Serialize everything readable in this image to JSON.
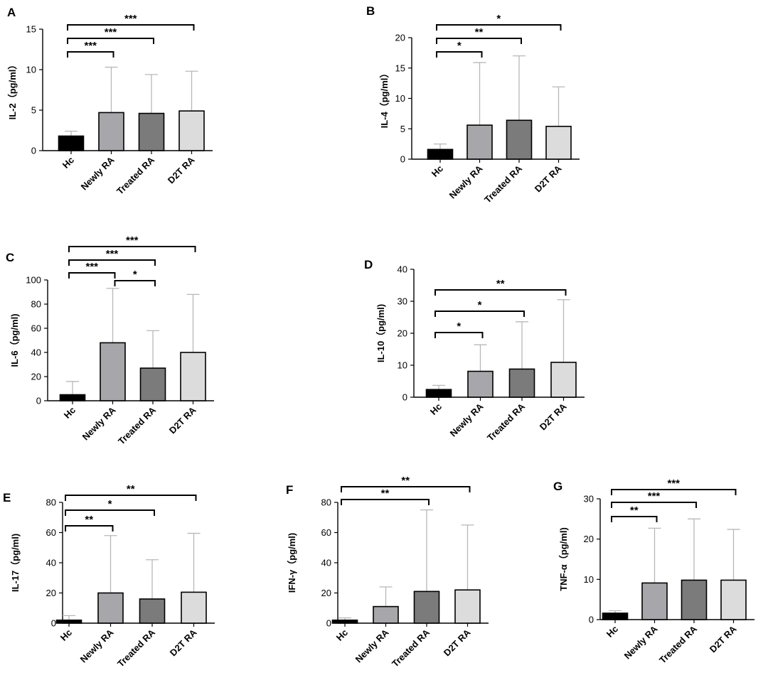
{
  "chart_data": [
    {
      "type": "bar",
      "panel": "A",
      "ylabel": "IL-2（pg/ml）",
      "ylim": [
        0,
        15
      ],
      "yticks": [
        0,
        5,
        10,
        15
      ],
      "categories": [
        "Hc",
        "Newly RA",
        "Treated RA",
        "D2T RA"
      ],
      "values": [
        1.8,
        4.7,
        4.6,
        4.9
      ],
      "error_upper": [
        2.4,
        10.3,
        9.4,
        9.8
      ],
      "significance": [
        {
          "from": 0,
          "to": 1,
          "label": "***"
        },
        {
          "from": 0,
          "to": 2,
          "label": "***"
        },
        {
          "from": 0,
          "to": 3,
          "label": "***"
        }
      ]
    },
    {
      "type": "bar",
      "panel": "B",
      "ylabel": "IL-4（pg/ml）",
      "ylim": [
        0,
        20
      ],
      "yticks": [
        0,
        5,
        10,
        15,
        20
      ],
      "categories": [
        "Hc",
        "Newly RA",
        "Treated RA",
        "D2T RA"
      ],
      "values": [
        1.6,
        5.6,
        6.4,
        5.4
      ],
      "error_upper": [
        2.5,
        15.9,
        17.0,
        11.9
      ],
      "significance": [
        {
          "from": 0,
          "to": 1,
          "label": "*"
        },
        {
          "from": 0,
          "to": 2,
          "label": "**"
        },
        {
          "from": 0,
          "to": 3,
          "label": "*"
        }
      ]
    },
    {
      "type": "bar",
      "panel": "C",
      "ylabel": "IL-6（pg/ml)",
      "ylim": [
        0,
        100
      ],
      "yticks": [
        0,
        20,
        40,
        60,
        80,
        100
      ],
      "categories": [
        "Hc",
        "Newly RA",
        "Treated RA",
        "D2T RA"
      ],
      "values": [
        5,
        48,
        27,
        40
      ],
      "error_upper": [
        16,
        93,
        58,
        88
      ],
      "significance": [
        {
          "from": 0,
          "to": 1,
          "label": "***"
        },
        {
          "from": 1,
          "to": 2,
          "label": "*"
        },
        {
          "from": 0,
          "to": 2,
          "label": "***"
        },
        {
          "from": 0,
          "to": 3,
          "label": "***"
        }
      ]
    },
    {
      "type": "bar",
      "panel": "D",
      "ylabel": "IL-10（pg/ml)",
      "ylim": [
        0,
        40
      ],
      "yticks": [
        0,
        10,
        20,
        30,
        40
      ],
      "categories": [
        "Hc",
        "Newly RA",
        "Treated RA",
        "D2T RA"
      ],
      "values": [
        2.4,
        8.1,
        8.8,
        10.9
      ],
      "error_upper": [
        3.7,
        16.4,
        23.6,
        30.5
      ],
      "significance": [
        {
          "from": 0,
          "to": 1,
          "label": "*"
        },
        {
          "from": 0,
          "to": 2,
          "label": "*"
        },
        {
          "from": 0,
          "to": 3,
          "label": "**"
        }
      ]
    },
    {
      "type": "bar",
      "panel": "E",
      "ylabel": "IL-17（pg/ml)",
      "ylim": [
        0,
        80
      ],
      "yticks": [
        0,
        20,
        40,
        60,
        80
      ],
      "categories": [
        "Hc",
        "Newly RA",
        "Treated RA",
        "D2T RA"
      ],
      "values": [
        2,
        20,
        16,
        20.5
      ],
      "error_upper": [
        5,
        58,
        42,
        59.5
      ],
      "significance": [
        {
          "from": 0,
          "to": 1,
          "label": "**"
        },
        {
          "from": 0,
          "to": 2,
          "label": "*"
        },
        {
          "from": 0,
          "to": 3,
          "label": "**"
        }
      ]
    },
    {
      "type": "bar",
      "panel": "F",
      "ylabel": "IFN-γ（pg/ml)",
      "ylim": [
        0,
        80
      ],
      "yticks": [
        0,
        20,
        40,
        60,
        80
      ],
      "categories": [
        "Hc",
        "Newly RA",
        "Treated RA",
        "D2T RA"
      ],
      "values": [
        2,
        11,
        21,
        22
      ],
      "error_upper": [
        3.5,
        24,
        75,
        65
      ],
      "significance": [
        {
          "from": 0,
          "to": 2,
          "label": "**"
        },
        {
          "from": 0,
          "to": 3,
          "label": "**"
        }
      ]
    },
    {
      "type": "bar",
      "panel": "G",
      "ylabel": "TNF-α（pg/ml)",
      "ylim": [
        0,
        30
      ],
      "yticks": [
        0,
        10,
        20,
        30
      ],
      "categories": [
        "Hc",
        "Newly RA",
        "Treated RA",
        "D2T RA"
      ],
      "values": [
        1.6,
        9.1,
        9.8,
        9.8
      ],
      "error_upper": [
        2.2,
        22.7,
        25.0,
        22.4
      ],
      "significance": [
        {
          "from": 0,
          "to": 1,
          "label": "**"
        },
        {
          "from": 0,
          "to": 2,
          "label": "***"
        },
        {
          "from": 0,
          "to": 3,
          "label": "***"
        }
      ]
    }
  ],
  "colors": {
    "Hc": "#000000",
    "Newly RA": "#a6a6ab",
    "Treated RA": "#7b7b7b",
    "D2T RA": "#dcdcdc",
    "error_bar": "#b8b8b8",
    "axis": "#000000"
  }
}
